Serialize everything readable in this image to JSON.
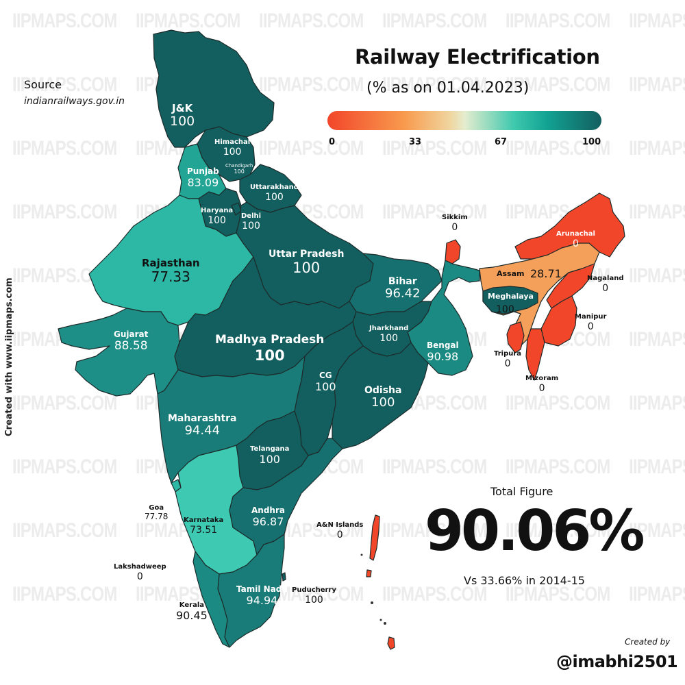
{
  "title": "Railway Electrification",
  "subtitle": "(% as on 01.04.2023)",
  "source": {
    "label": "Source",
    "url": "indianrailways.gov.in"
  },
  "credit_vertical": "Created with www.iipmaps.com",
  "watermark": "IIPMAPS.COM",
  "legend": {
    "ticks": [
      "0",
      "33",
      "67",
      "100"
    ],
    "colors": {
      "low": "#f2462a",
      "low_mid": "#f89a4d",
      "mid": "#e6eccf",
      "high_mid": "#3fc9ae",
      "high": "#135f5f"
    }
  },
  "total": {
    "label": "Total Figure",
    "value": "90.06%",
    "comparison": "Vs 33.66% in 2014-15"
  },
  "created_by": {
    "label": "Created by",
    "handle": "@imabhi2501"
  },
  "colors": {
    "c100": "#135f5f",
    "c96": "#177070",
    "c94": "#1a7c78",
    "c90": "#1b8a82",
    "c88": "#1e8f86",
    "c83": "#22a595",
    "c77": "#2db8a5",
    "c73": "#3ec9b2",
    "c28": "#f5a05a",
    "c0": "#f2462a"
  },
  "states": {
    "jk": {
      "name": "J&K",
      "value": "100"
    },
    "himachal": {
      "name": "Himachal",
      "value": "100"
    },
    "chandigarh": {
      "name": "Chandigarh",
      "value": "100"
    },
    "punjab": {
      "name": "Punjab",
      "value": "83.09"
    },
    "uttarakhand": {
      "name": "Uttarakhand",
      "value": "100"
    },
    "haryana": {
      "name": "Haryana",
      "value": "100"
    },
    "delhi": {
      "name": "Delhi",
      "value": "100"
    },
    "rajasthan": {
      "name": "Rajasthan",
      "value": "77.33"
    },
    "uttar_pradesh": {
      "name": "Uttar Pradesh",
      "value": "100"
    },
    "bihar": {
      "name": "Bihar",
      "value": "96.42"
    },
    "sikkim": {
      "name": "Sikkim",
      "value": "0"
    },
    "arunachal": {
      "name": "Arunachal",
      "value": "0"
    },
    "assam": {
      "name": "Assam",
      "value": "28.71"
    },
    "meghalaya": {
      "name": "Meghalaya",
      "value": "100"
    },
    "nagaland": {
      "name": "Nagaland",
      "value": "0"
    },
    "manipur": {
      "name": "Manipur",
      "value": "0"
    },
    "tripura": {
      "name": "Tripura",
      "value": "0"
    },
    "mizoram": {
      "name": "Mizoram",
      "value": "0"
    },
    "gujarat": {
      "name": "Gujarat",
      "value": "88.58"
    },
    "madhya_pradesh": {
      "name": "Madhya Pradesh",
      "value": "100"
    },
    "jharkhand": {
      "name": "Jharkhand",
      "value": "100"
    },
    "bengal": {
      "name": "Bengal",
      "value": "90.98"
    },
    "cg": {
      "name": "CG",
      "value": "100"
    },
    "odisha": {
      "name": "Odisha",
      "value": "100"
    },
    "maharashtra": {
      "name": "Maharashtra",
      "value": "94.44"
    },
    "telangana": {
      "name": "Telangana",
      "value": "100"
    },
    "goa": {
      "name": "Goa",
      "value": "77.78"
    },
    "karnataka": {
      "name": "Karnataka",
      "value": "73.51"
    },
    "andhra": {
      "name": "Andhra",
      "value": "96.87"
    },
    "an_islands": {
      "name": "A&N Islands",
      "value": "0"
    },
    "lakshadweep": {
      "name": "Lakshadweep",
      "value": "0"
    },
    "tamil_nadu": {
      "name": "Tamil Nadu",
      "value": "94.94"
    },
    "puducherry": {
      "name": "Puducherry",
      "value": "100"
    },
    "kerala": {
      "name": "Kerala",
      "value": "90.45"
    }
  },
  "chart_data": {
    "type": "choropleth",
    "title": "Railway Electrification",
    "subtitle": "(% as on 01.04.2023)",
    "scale": {
      "min": 0,
      "max": 100,
      "ticks": [
        0,
        33,
        67,
        100
      ],
      "colors": [
        "#f2462a",
        "#f89a4d",
        "#e6eccf",
        "#3fc9ae",
        "#135f5f"
      ]
    },
    "regions": [
      {
        "name": "J&K",
        "value": 100
      },
      {
        "name": "Himachal",
        "value": 100
      },
      {
        "name": "Chandigarh",
        "value": 100
      },
      {
        "name": "Punjab",
        "value": 83.09
      },
      {
        "name": "Uttarakhand",
        "value": 100
      },
      {
        "name": "Haryana",
        "value": 100
      },
      {
        "name": "Delhi",
        "value": 100
      },
      {
        "name": "Rajasthan",
        "value": 77.33
      },
      {
        "name": "Uttar Pradesh",
        "value": 100
      },
      {
        "name": "Bihar",
        "value": 96.42
      },
      {
        "name": "Sikkim",
        "value": 0
      },
      {
        "name": "Arunachal",
        "value": 0
      },
      {
        "name": "Assam",
        "value": 28.71
      },
      {
        "name": "Meghalaya",
        "value": 100
      },
      {
        "name": "Nagaland",
        "value": 0
      },
      {
        "name": "Manipur",
        "value": 0
      },
      {
        "name": "Tripura",
        "value": 0
      },
      {
        "name": "Mizoram",
        "value": 0
      },
      {
        "name": "Gujarat",
        "value": 88.58
      },
      {
        "name": "Madhya Pradesh",
        "value": 100
      },
      {
        "name": "Jharkhand",
        "value": 100
      },
      {
        "name": "Bengal",
        "value": 90.98
      },
      {
        "name": "CG",
        "value": 100
      },
      {
        "name": "Odisha",
        "value": 100
      },
      {
        "name": "Maharashtra",
        "value": 94.44
      },
      {
        "name": "Telangana",
        "value": 100
      },
      {
        "name": "Goa",
        "value": 77.78
      },
      {
        "name": "Karnataka",
        "value": 73.51
      },
      {
        "name": "Andhra",
        "value": 96.87
      },
      {
        "name": "A&N Islands",
        "value": 0
      },
      {
        "name": "Lakshadweep",
        "value": 0
      },
      {
        "name": "Tamil Nadu",
        "value": 94.94
      },
      {
        "name": "Puducherry",
        "value": 100
      },
      {
        "name": "Kerala",
        "value": 90.45
      }
    ],
    "total": {
      "value": 90.06,
      "unit": "%",
      "comparison": {
        "value": 33.66,
        "period": "2014-15"
      }
    }
  }
}
